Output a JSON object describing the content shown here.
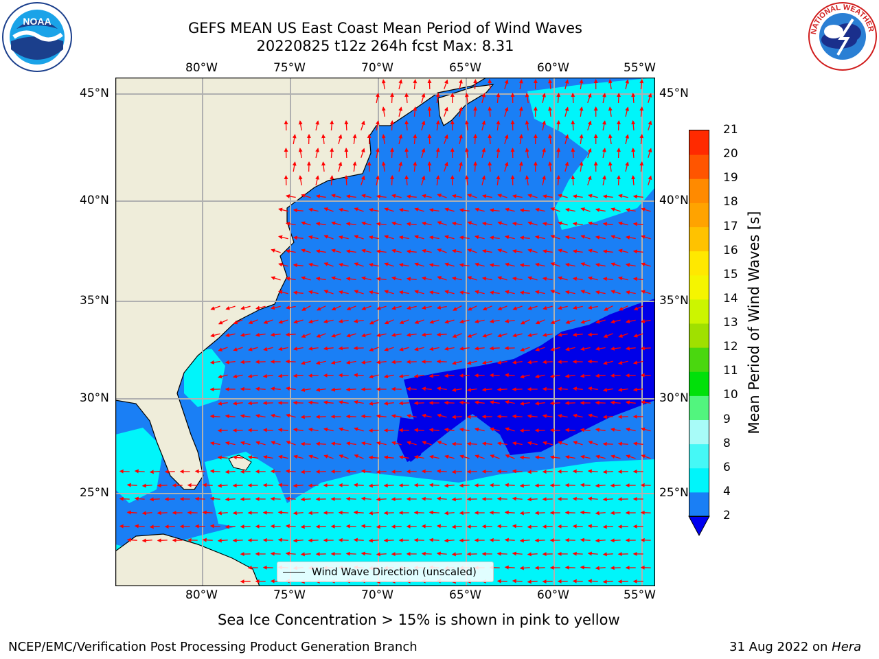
{
  "header": {
    "title_line1": "GEFS MEAN US East Coast Mean Period of Wind Waves",
    "title_line2": "20220825 t12z 264h fcst   Max: 8.31"
  },
  "logos": {
    "left": {
      "icon": "noaa-logo-icon",
      "text": "NOAA"
    },
    "right": {
      "icon": "nws-logo-icon",
      "text": "NATIONAL WEATHER SERVICE"
    }
  },
  "map": {
    "lon_labels": [
      "80°W",
      "75°W",
      "70°W",
      "65°W",
      "60°W",
      "55°W"
    ],
    "lat_labels": [
      "45°N",
      "40°N",
      "35°N",
      "30°N",
      "25°N"
    ],
    "legend_label": "Wind Wave Direction (unscaled)",
    "colors": {
      "land": "#efedda",
      "ocean_2_4": "#1a7ff5",
      "ocean_4_6": "#00f5fa",
      "ocean_below_2": "#0000e8",
      "arrow": "#ff0000",
      "grid": "#b0b0b0"
    }
  },
  "colorbar": {
    "label": "Mean Period of Wind Waves [s]",
    "ticks": [
      "2",
      "4",
      "6",
      "8",
      "9",
      "10",
      "11",
      "12",
      "13",
      "14",
      "15",
      "16",
      "17",
      "18",
      "19",
      "20",
      "21"
    ],
    "colors": [
      "#1a7ff5",
      "#00f5fa",
      "#45f8f6",
      "#a8fbf8",
      "#52f57e",
      "#01e00a",
      "#4ad70f",
      "#a0e000",
      "#ccf500",
      "#f5f500",
      "#ffe800",
      "#ffc200",
      "#ffa300",
      "#ff8a00",
      "#ff5500",
      "#ff2a00",
      "#ff0000"
    ],
    "under_color": "#0000f0"
  },
  "footer": {
    "note": "Sea Ice Concentration > 15% is shown in pink to yellow",
    "credit": "NCEP/EMC/Verification Post Processing Product Generation Branch",
    "date": "31 Aug 2022 on ",
    "machine": "Hera"
  }
}
